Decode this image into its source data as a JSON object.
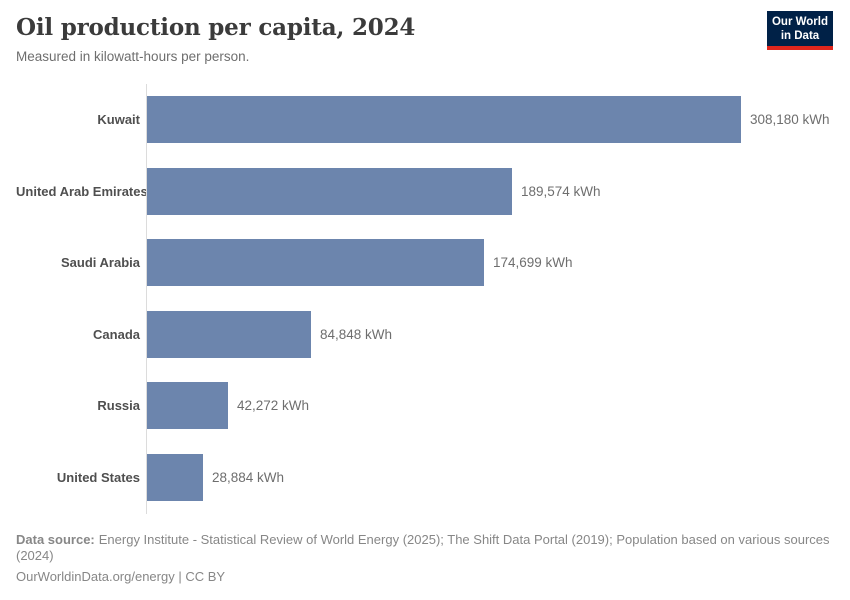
{
  "header": {
    "title": "Oil production per capita, 2024",
    "subtitle": "Measured in kilowatt-hours per person."
  },
  "logo": {
    "line1": "Our World",
    "line2": "in Data",
    "bg_color": "#002147",
    "accent_color": "#e0261c",
    "text_color": "#ffffff"
  },
  "chart_data": {
    "type": "bar",
    "orientation": "horizontal",
    "title": "Oil production per capita, 2024",
    "unit": "kWh",
    "categories": [
      "Kuwait",
      "United Arab Emirates",
      "Saudi Arabia",
      "Canada",
      "Russia",
      "United States"
    ],
    "values": [
      308180,
      189574,
      174699,
      84848,
      42272,
      28884
    ],
    "value_labels": [
      "308,180 kWh",
      "189,574 kWh",
      "174,699 kWh",
      "84,848 kWh",
      "42,272 kWh",
      "28,884 kWh"
    ],
    "xlim": [
      0,
      308180
    ],
    "bar_color": "#6c85ad",
    "axis_color": "#dcdcdc",
    "grid": false,
    "legend": "none"
  },
  "footer": {
    "source_label": "Data source:",
    "source_text": "Energy Institute - Statistical Review of World Energy (2025); The Shift Data Portal (2019); Population based on various sources (2024)",
    "credit": "OurWorldinData.org/energy | CC BY"
  }
}
